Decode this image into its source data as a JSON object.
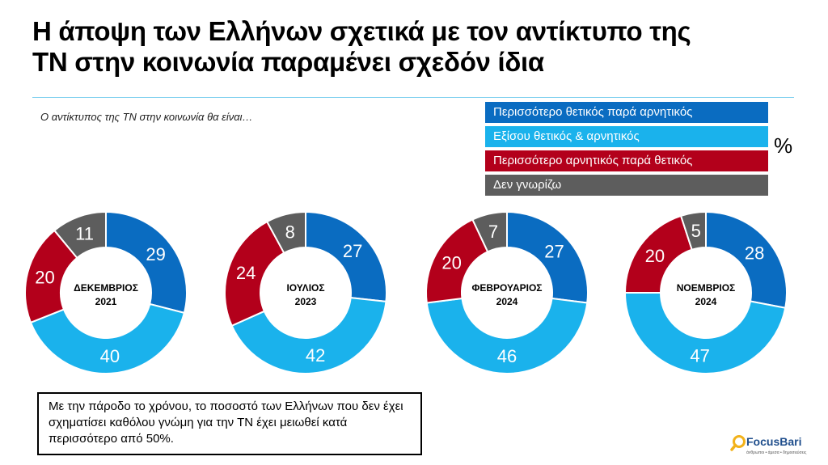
{
  "title_line1": "Η άποψη των Ελλήνων σχετικά με τον αντίκτυπο της",
  "title_line2": "ΤΝ στην κοινωνία παραμένει σχεδόν ίδια",
  "subtitle": "Ο αντίκτυπος της ΤΝ στην κοινωνία θα είναι…",
  "unit": "%",
  "note": "Με την πάροδο το χρόνου, το ποσοστό των Ελλήνων που δεν έχει σχηματίσει καθόλου γνώμη για την ΤΝ έχει μειωθεί κατά περισσότερο από 50%.",
  "logo": {
    "name": "FocusBari",
    "tagline": "άνθρωποι • άμεσα • δημοσιεύσεις"
  },
  "chart_data": {
    "type": "pie",
    "donut": true,
    "legend_position": "top-right",
    "categories": [
      "Περισσότερο θετικός παρά αρνητικός",
      "Εξίσου θετικός & αρνητικός",
      "Περισσότερο αρνητικός παρά θετικός",
      "Δεν γνωρίζω"
    ],
    "colors": [
      "#0a6cc1",
      "#1ab2ec",
      "#b3001b",
      "#5d5d5d"
    ],
    "charts": [
      {
        "month": "ΔΕΚΕΜΒΡΙΟΣ",
        "year": "2021",
        "values": [
          29,
          40,
          20,
          11
        ]
      },
      {
        "month": "ΙΟΥΛΙΟΣ",
        "year": "2023",
        "values": [
          27,
          42,
          24,
          8
        ]
      },
      {
        "month": "ΦΕΒΡΟΥΑΡΙΟΣ",
        "year": "2024",
        "values": [
          27,
          46,
          20,
          7
        ]
      },
      {
        "month": "ΝΟΕΜΒΡΙΟΣ",
        "year": "2024",
        "values": [
          28,
          47,
          20,
          5
        ]
      }
    ]
  }
}
